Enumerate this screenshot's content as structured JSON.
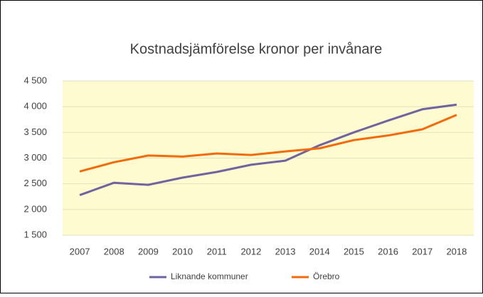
{
  "chart_data": {
    "type": "line",
    "title": "Kostnadsjämförelse kronor per invånare",
    "categories": [
      "2007",
      "2008",
      "2009",
      "2010",
      "2011",
      "2012",
      "2013",
      "2014",
      "2015",
      "2016",
      "2017",
      "2018"
    ],
    "series": [
      {
        "name": "Liknande kommuner",
        "color": "#7063a0",
        "values": [
          2280,
          2520,
          2480,
          2620,
          2730,
          2870,
          2950,
          3250,
          3500,
          3730,
          3950,
          4040
        ]
      },
      {
        "name": "Örebro",
        "color": "#f26a0a",
        "values": [
          2740,
          2920,
          3050,
          3030,
          3090,
          3060,
          3130,
          3190,
          3350,
          3440,
          3560,
          3840
        ]
      }
    ],
    "ylim": [
      1500,
      4500
    ],
    "yticks": [
      {
        "value": 1500,
        "label": "1 500"
      },
      {
        "value": 2000,
        "label": "2 000"
      },
      {
        "value": 2500,
        "label": "2 500"
      },
      {
        "value": 3000,
        "label": "3 000"
      },
      {
        "value": 3500,
        "label": "3 500"
      },
      {
        "value": 4000,
        "label": "4 000"
      },
      {
        "value": 4500,
        "label": "4 500"
      }
    ],
    "grid": true,
    "legend": "bottom",
    "plot_background": "#fdfbcf"
  }
}
